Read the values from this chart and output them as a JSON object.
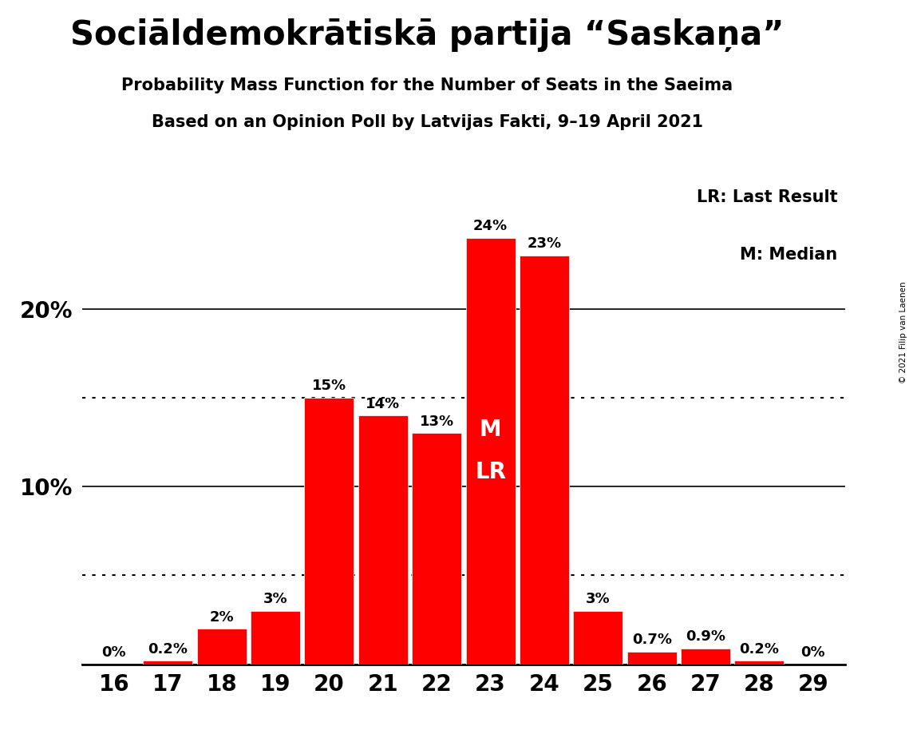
{
  "title": "Sociāldemokrātiskā partija “Saskaņa”",
  "subtitle1": "Probability Mass Function for the Number of Seats in the Saeima",
  "subtitle2": "Based on an Opinion Poll by Latvijas Fakti, 9–19 April 2021",
  "copyright": "© 2021 Filip van Laenen",
  "categories": [
    16,
    17,
    18,
    19,
    20,
    21,
    22,
    23,
    24,
    25,
    26,
    27,
    28,
    29
  ],
  "values": [
    0.0,
    0.2,
    2.0,
    3.0,
    15.0,
    14.0,
    13.0,
    24.0,
    23.0,
    3.0,
    0.7,
    0.9,
    0.2,
    0.0
  ],
  "labels": [
    "0%",
    "0.2%",
    "2%",
    "3%",
    "15%",
    "14%",
    "13%",
    "24%",
    "23%",
    "3%",
    "0.7%",
    "0.9%",
    "0.2%",
    "0%"
  ],
  "bar_color": "#ff0000",
  "median_seat": 23,
  "last_result_seat": 23,
  "median_label": "M",
  "last_result_label": "LR",
  "legend_lr": "LR: Last Result",
  "legend_m": "M: Median",
  "ylim": [
    0,
    27
  ],
  "solid_lines": [
    10.0,
    20.0
  ],
  "dotted_lines": [
    5.0,
    15.0
  ],
  "background_color": "#ffffff",
  "bar_label_fontsize": 13,
  "title_fontsize": 30,
  "subtitle_fontsize": 15,
  "axis_tick_fontsize": 20,
  "legend_fontsize": 15,
  "inside_label_fontsize": 20
}
